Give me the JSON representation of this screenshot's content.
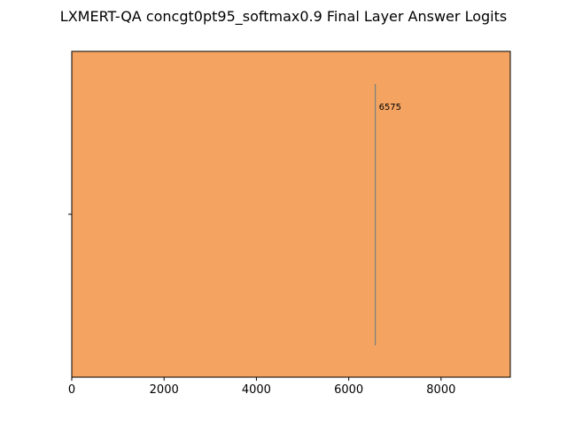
{
  "chart_data": {
    "type": "violin",
    "title": "LXMERT-QA concgt0pt95_softmax0.9 Final Layer Answer Logits",
    "xlabel": "",
    "ylabel": "",
    "xlim": [
      0,
      9500
    ],
    "x_ticks": [
      0,
      2000,
      4000,
      6000,
      8000
    ],
    "x_tick_labels": [
      "0",
      "2000",
      "4000",
      "6000",
      "8000"
    ],
    "y_ticks": [
      ""
    ],
    "grid": false,
    "series": [
      {
        "values_span": [
          0,
          9500
        ],
        "median": 6575
      }
    ],
    "annotations": [
      {
        "text": "6575",
        "x": 6575
      }
    ],
    "colors": {
      "fill": "#f4a460",
      "edge": "#000000",
      "median_line": "#808080"
    }
  }
}
